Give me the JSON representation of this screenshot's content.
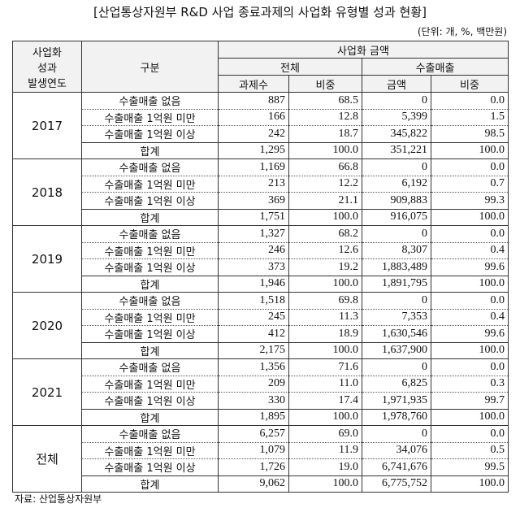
{
  "title": "[산업통상자원부 R&D 사업 종료과제의 사업화 유형별 성과 현황]",
  "unit": "(단위: 개, %, 백만원)",
  "header": {
    "year_lines": [
      "사업화",
      "성과",
      "발생연도"
    ],
    "category": "구분",
    "amount": "사업화 금액",
    "total": "전체",
    "export": "수출매출",
    "count": "과제수",
    "share": "비중",
    "money": "금액",
    "export_share": "비중"
  },
  "groups": [
    {
      "year": "2017",
      "rows": [
        [
          "수출매출 없음",
          "887",
          "68.5",
          "0",
          "0.0"
        ],
        [
          "수출매출 1억원 미만",
          "166",
          "12.8",
          "5,399",
          "1.5"
        ],
        [
          "수출매출 1억원 이상",
          "242",
          "18.7",
          "345,822",
          "98.5"
        ],
        [
          "합계",
          "1,295",
          "100.0",
          "351,221",
          "100.0"
        ]
      ]
    },
    {
      "year": "2018",
      "rows": [
        [
          "수출매출 없음",
          "1,169",
          "66.8",
          "0",
          "0.0"
        ],
        [
          "수출매출 1억원 미만",
          "213",
          "12.2",
          "6,192",
          "0.7"
        ],
        [
          "수출매출 1억원 이상",
          "369",
          "21.1",
          "909,883",
          "99.3"
        ],
        [
          "합계",
          "1,751",
          "100.0",
          "916,075",
          "100.0"
        ]
      ]
    },
    {
      "year": "2019",
      "rows": [
        [
          "수출매출 없음",
          "1,327",
          "68.2",
          "0",
          "0.0"
        ],
        [
          "수출매출 1억원 미만",
          "246",
          "12.6",
          "8,307",
          "0.4"
        ],
        [
          "수출매출 1억원 이상",
          "373",
          "19.2",
          "1,883,489",
          "99.6"
        ],
        [
          "합계",
          "1,946",
          "100.0",
          "1,891,795",
          "100.0"
        ]
      ]
    },
    {
      "year": "2020",
      "rows": [
        [
          "수출매출 없음",
          "1,518",
          "69.8",
          "0",
          "0.0"
        ],
        [
          "수출매출 1억원 미만",
          "245",
          "11.3",
          "7,353",
          "0.4"
        ],
        [
          "수출매출 1억원 이상",
          "412",
          "18.9",
          "1,630,546",
          "99.6"
        ],
        [
          "합계",
          "2,175",
          "100.0",
          "1,637,900",
          "100.0"
        ]
      ]
    },
    {
      "year": "2021",
      "rows": [
        [
          "수출매출 없음",
          "1,356",
          "71.6",
          "0",
          "0.0"
        ],
        [
          "수출매출 1억원 미만",
          "209",
          "11.0",
          "6,825",
          "0.3"
        ],
        [
          "수출매출 1억원 이상",
          "330",
          "17.4",
          "1,971,935",
          "99.7"
        ],
        [
          "합계",
          "1,895",
          "100.0",
          "1,978,760",
          "100.0"
        ]
      ]
    },
    {
      "year": "전체",
      "rows": [
        [
          "수출매출 없음",
          "6,257",
          "69.0",
          "0",
          "0.0"
        ],
        [
          "수출매출 1억원 미만",
          "1,079",
          "11.9",
          "34,076",
          "0.5"
        ],
        [
          "수출매출 1억원 이상",
          "1,726",
          "19.0",
          "6,741,676",
          "99.5"
        ],
        [
          "합계",
          "9,062",
          "100.0",
          "6,775,752",
          "100.0"
        ]
      ]
    }
  ],
  "source": "자료: 산업통상자원부"
}
